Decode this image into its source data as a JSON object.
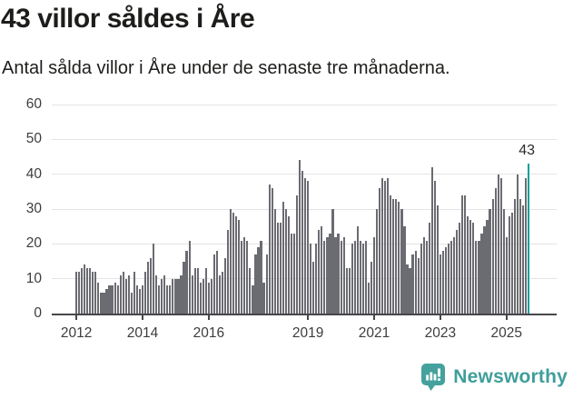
{
  "header": {
    "title": "43 villor såldes i Åre",
    "subtitle": "Antal sålda villor i Åre under de senaste tre månaderna."
  },
  "chart_data": {
    "type": "bar",
    "title": "43 villor såldes i Åre",
    "subtitle": "Antal sålda villor i Åre under de senaste tre månaderna.",
    "frequency": "monthly",
    "start_month": "2012-01",
    "end_month": "2025-09",
    "values": [
      12,
      12,
      13,
      14,
      13,
      13,
      12,
      12,
      9,
      6,
      6,
      7,
      8,
      8,
      9,
      8,
      11,
      12,
      10,
      11,
      6,
      12,
      8,
      7,
      8,
      12,
      15,
      16,
      20,
      11,
      8,
      10,
      11,
      8,
      8,
      10,
      10,
      10,
      11,
      15,
      18,
      21,
      11,
      13,
      13,
      9,
      10,
      13,
      9,
      10,
      17,
      18,
      11,
      12,
      16,
      24,
      30,
      29,
      28,
      27,
      21,
      22,
      21,
      13,
      8,
      17,
      19,
      21,
      9,
      17,
      37,
      36,
      30,
      26,
      26,
      32,
      30,
      28,
      23,
      23,
      34,
      44,
      41,
      39,
      38,
      20,
      15,
      20,
      24,
      25,
      21,
      22,
      23,
      30,
      22,
      23,
      21,
      22,
      13,
      13,
      20,
      21,
      25,
      21,
      20,
      21,
      9,
      15,
      22,
      30,
      36,
      39,
      38,
      39,
      34,
      33,
      33,
      32,
      30,
      25,
      14,
      13,
      17,
      18,
      16,
      20,
      22,
      21,
      26,
      42,
      38,
      31,
      17,
      18,
      19,
      20,
      21,
      22,
      24,
      26,
      34,
      34,
      28,
      27,
      26,
      21,
      21,
      23,
      25,
      27,
      30,
      33,
      36,
      40,
      39,
      30,
      22,
      28,
      29,
      33,
      40,
      33,
      31,
      39,
      43
    ],
    "highlighted_last_value": 43,
    "annotation_label": "43",
    "y_ticks": [
      0,
      10,
      20,
      30,
      40,
      50,
      60
    ],
    "ylim": [
      0,
      60
    ],
    "x_tick_labels": [
      "2012",
      "2014",
      "2016",
      "2019",
      "2021",
      "2023",
      "2025"
    ],
    "x_tick_start_year": 2012,
    "grid": "horizontal",
    "legend": "none",
    "bar_color": "#6b6b72",
    "highlight_color": "#0b9e9c"
  },
  "footer": {
    "brand": "Newsworthy",
    "brand_color": "#3f9e9b",
    "icon": "newsworthy-bar-chart-bubble"
  }
}
